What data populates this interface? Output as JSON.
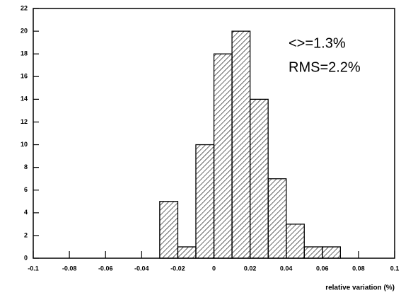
{
  "chart_data": {
    "type": "histogram",
    "bins": [
      -0.03,
      -0.02,
      -0.01,
      0,
      0.01,
      0.02,
      0.03,
      0.04,
      0.05,
      0.06,
      0.07
    ],
    "values": [
      5,
      1,
      10,
      18,
      20,
      14,
      7,
      3,
      1,
      1
    ],
    "color": "#000000",
    "xlim": [
      -0.1,
      0.1
    ],
    "xticks": [
      -0.1,
      -0.08,
      -0.06,
      -0.04,
      -0.02,
      0,
      0.02,
      0.04,
      0.06,
      0.08,
      0.1
    ],
    "ylim": [
      0,
      22
    ],
    "yticks": [
      0,
      2,
      4,
      6,
      8,
      10,
      12,
      14,
      16,
      18,
      20,
      22
    ],
    "xlabel": "relative variation (%)",
    "annotations": [
      "<>=1.3%",
      "RMS=2.2%"
    ]
  }
}
